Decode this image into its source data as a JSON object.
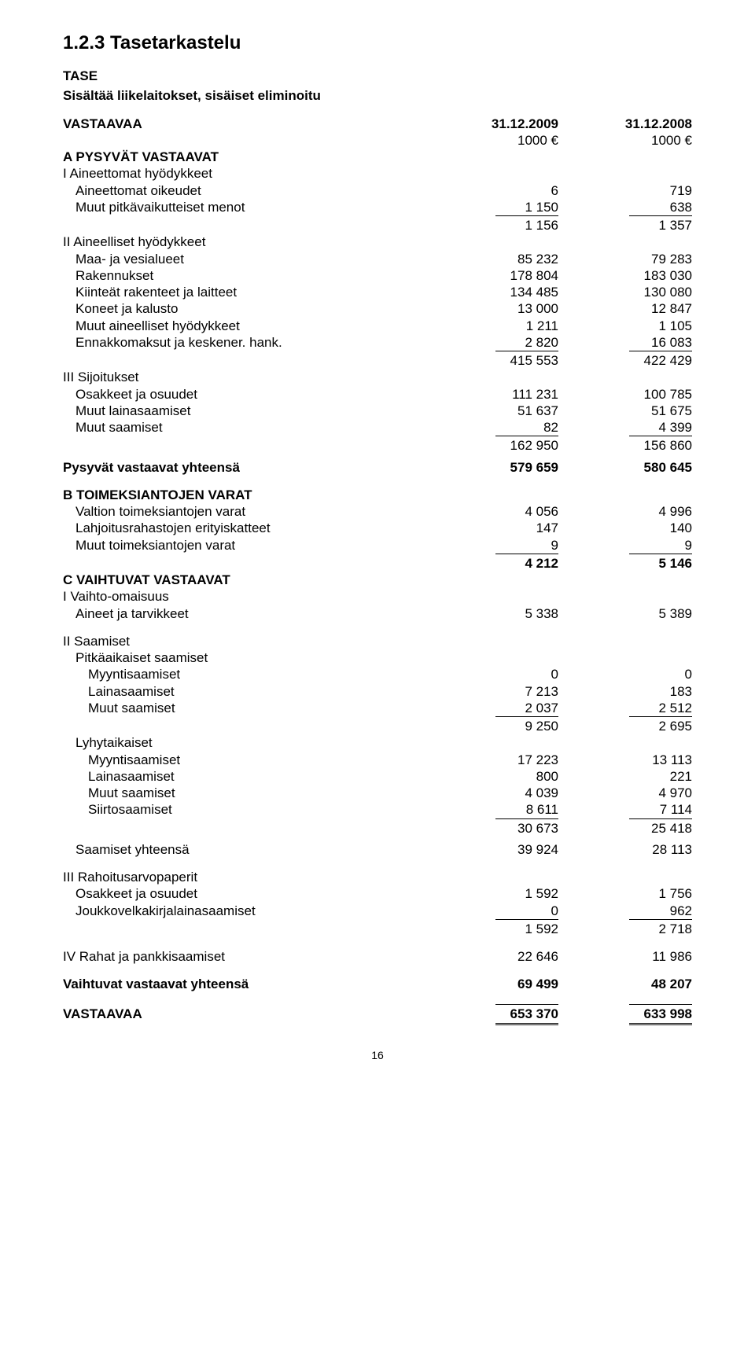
{
  "title": "1.2.3 Tasetarkastelu",
  "subtitle1": "TASE",
  "subtitle2": "Sisältää liikelaitokset, sisäiset eliminoitu",
  "header": {
    "label": "VASTAAVAA",
    "date1": "31.12.2009",
    "date2": "31.12.2008",
    "unit1": "1000 €",
    "unit2": "1000 €"
  },
  "sectionA": {
    "title": "A PYSYVÄT VASTAAVAT",
    "g1": {
      "title": "I Aineettomat hyödykkeet",
      "r1": {
        "label": "Aineettomat oikeudet",
        "v1": "6",
        "v2": "719"
      },
      "r2": {
        "label": "Muut pitkävaikutteiset menot",
        "v1": "1 150",
        "v2": "638"
      },
      "sum": {
        "v1": "1 156",
        "v2": "1 357"
      }
    },
    "g2": {
      "title": "II Aineelliset hyödykkeet",
      "r1": {
        "label": "Maa- ja vesialueet",
        "v1": "85 232",
        "v2": "79 283"
      },
      "r2": {
        "label": "Rakennukset",
        "v1": "178 804",
        "v2": "183 030"
      },
      "r3": {
        "label": "Kiinteät rakenteet ja laitteet",
        "v1": "134 485",
        "v2": "130 080"
      },
      "r4": {
        "label": "Koneet ja kalusto",
        "v1": "13 000",
        "v2": "12 847"
      },
      "r5": {
        "label": "Muut aineelliset hyödykkeet",
        "v1": "1 211",
        "v2": "1 105"
      },
      "r6": {
        "label": "Ennakkomaksut ja keskener. hank.",
        "v1": "2 820",
        "v2": "16 083"
      },
      "sum": {
        "v1": "415 553",
        "v2": "422 429"
      }
    },
    "g3": {
      "title": "III Sijoitukset",
      "r1": {
        "label": "Osakkeet ja osuudet",
        "v1": "111 231",
        "v2": "100 785"
      },
      "r2": {
        "label": "Muut lainasaamiset",
        "v1": "51 637",
        "v2": "51 675"
      },
      "r3": {
        "label": "Muut saamiset",
        "v1": "82",
        "v2": "4 399"
      },
      "sum": {
        "v1": "162 950",
        "v2": "156 860"
      }
    },
    "total": {
      "label": "Pysyvät vastaavat yhteensä",
      "v1": "579 659",
      "v2": "580 645"
    }
  },
  "sectionB": {
    "title": "B TOIMEKSIANTOJEN VARAT",
    "r1": {
      "label": "Valtion toimeksiantojen varat",
      "v1": "4 056",
      "v2": "4 996"
    },
    "r2": {
      "label": "Lahjoitusrahastojen erityiskatteet",
      "v1": "147",
      "v2": "140"
    },
    "r3": {
      "label": "Muut toimeksiantojen varat",
      "v1": "9",
      "v2": "9"
    },
    "sum": {
      "v1": "4 212",
      "v2": "5 146"
    }
  },
  "sectionC": {
    "title": "C VAIHTUVAT VASTAAVAT",
    "g1": {
      "title": "I Vaihto-omaisuus",
      "r1": {
        "label": "Aineet ja tarvikkeet",
        "v1": "5 338",
        "v2": "5 389"
      }
    },
    "g2": {
      "title": "II Saamiset",
      "sub1": {
        "title": "Pitkäaikaiset saamiset",
        "r1": {
          "label": "Myyntisaamiset",
          "v1": "0",
          "v2": "0"
        },
        "r2": {
          "label": "Lainasaamiset",
          "v1": "7 213",
          "v2": "183"
        },
        "r3": {
          "label": "Muut saamiset",
          "v1": "2 037",
          "v2": "2 512"
        },
        "sum": {
          "v1": "9 250",
          "v2": "2 695"
        }
      },
      "sub2": {
        "title": "Lyhytaikaiset",
        "r1": {
          "label": "Myyntisaamiset",
          "v1": "17 223",
          "v2": "13 113"
        },
        "r2": {
          "label": "Lainasaamiset",
          "v1": "800",
          "v2": "221"
        },
        "r3": {
          "label": "Muut saamiset",
          "v1": "4 039",
          "v2": "4 970"
        },
        "r4": {
          "label": "Siirtosaamiset",
          "v1": "8 611",
          "v2": "7 114"
        },
        "sum": {
          "v1": "30 673",
          "v2": "25 418"
        }
      },
      "total": {
        "label": "Saamiset yhteensä",
        "v1": "39 924",
        "v2": "28 113"
      }
    },
    "g3": {
      "title": "III Rahoitusarvopaperit",
      "r1": {
        "label": "Osakkeet ja osuudet",
        "v1": "1 592",
        "v2": "1 756"
      },
      "r2": {
        "label": "Joukkovelkakirjalainasaamiset",
        "v1": "0",
        "v2": "962"
      },
      "sum": {
        "v1": "1 592",
        "v2": "2 718"
      }
    },
    "g4": {
      "label": "IV Rahat ja pankkisaamiset",
      "v1": "22 646",
      "v2": "11 986"
    },
    "total": {
      "label": "Vaihtuvat vastaavat yhteensä",
      "v1": "69 499",
      "v2": "48 207"
    }
  },
  "grand": {
    "label": "VASTAAVAA",
    "v1": "653 370",
    "v2": "633 998"
  },
  "pagenum": "16"
}
